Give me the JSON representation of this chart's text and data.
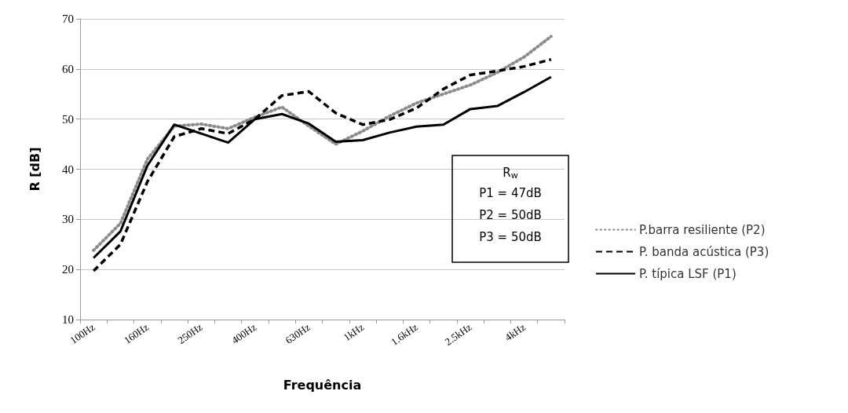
{
  "chart_data": {
    "type": "line",
    "xlabel": "Frequência",
    "ylabel": "R [dB]",
    "categories": [
      "100Hz",
      null,
      "160Hz",
      null,
      "250Hz",
      null,
      "400Hz",
      null,
      "630Hz",
      null,
      "1kHz",
      null,
      "1.6kHz",
      null,
      "2.5kHz",
      null,
      "4kHz",
      null
    ],
    "series": [
      {
        "name": "P.barra resiliente (P2)",
        "color": "#8c8c8c",
        "line_style": "dotted",
        "values": [
          23.8,
          29.2,
          42,
          48.6,
          49,
          48.1,
          50.4,
          52.4,
          48.6,
          45,
          47.6,
          50.6,
          53.2,
          55,
          56.8,
          59.3,
          62.4,
          66.5
        ]
      },
      {
        "name": "P. banda acústica (P3)",
        "color": "#000000",
        "line_style": "dashed",
        "values": [
          19.7,
          25,
          37.5,
          46.5,
          48.1,
          47.1,
          50,
          54.7,
          55.5,
          51.2,
          48.9,
          49.9,
          52.2,
          56,
          58.8,
          59.6,
          60.5,
          61.9
        ]
      },
      {
        "name": "P. típica LSF (P1)",
        "color": "#000000",
        "line_style": "solid",
        "values": [
          22.3,
          27.6,
          40.7,
          48.9,
          47.1,
          45.3,
          50,
          51,
          49.1,
          45.5,
          45.8,
          47.3,
          48.5,
          48.9,
          52,
          52.6,
          55.4,
          58.4
        ]
      }
    ],
    "ylim": [
      10,
      70
    ],
    "yticks": [
      10,
      20,
      30,
      40,
      50,
      60,
      70
    ],
    "grid": "y",
    "legend": "right",
    "marker": "none",
    "annotations": [
      "R$_{w}$",
      "P1 = 47dB",
      "P2 = 50dB",
      "P3 = 50dB"
    ]
  }
}
